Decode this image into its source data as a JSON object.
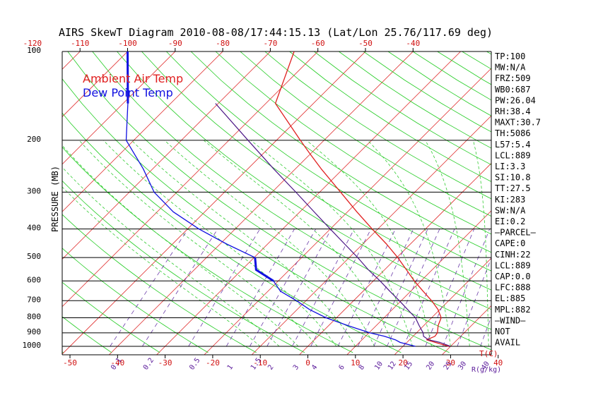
{
  "chart_data": {
    "type": "line",
    "title": "AIRS SkewT Diagram 2010-08-08/17:44:15.13 (Lat/Lon 25.76/117.69 deg)",
    "ylabel": "PRESSURE (MB)",
    "xlabel_right": "T(C)",
    "mixing_ratio_unit": "R(g/kg)",
    "top_temp_ticks": [
      "-120",
      "-110",
      "-100",
      "-90",
      "-80",
      "-70",
      "-60",
      "-50",
      "-40"
    ],
    "top_temp_values": [
      -120,
      -110,
      -100,
      -90,
      -80,
      -70,
      -60,
      -50,
      -40
    ],
    "bottom_temp_ticks": [
      "-50",
      "-40",
      "-30",
      "-20",
      "-10",
      "0",
      "10",
      "20",
      "30",
      "40"
    ],
    "bottom_temp_values": [
      -50,
      -40,
      -30,
      -20,
      -10,
      0,
      10,
      20,
      30,
      40
    ],
    "pressure_ticks": [
      "100",
      "200",
      "300",
      "400",
      "500",
      "600",
      "700",
      "800",
      "900",
      "1000"
    ],
    "pressure_levels": [
      100,
      200,
      300,
      400,
      500,
      600,
      700,
      800,
      900,
      1000
    ],
    "mixing_ratio_labels": [
      "0.1",
      "0.2",
      "0.5",
      "1",
      "1.5",
      "2",
      "3",
      "4",
      "6",
      "8",
      "10",
      "12",
      "15",
      "20",
      "25",
      "30",
      "40"
    ],
    "mixing_ratio_values": [
      0.1,
      0.2,
      0.5,
      1,
      1.5,
      2,
      3,
      4,
      6,
      8,
      10,
      12,
      15,
      20,
      25,
      30,
      40
    ],
    "legend": [
      {
        "name": "Ambient Air Temp",
        "color": "#e02020"
      },
      {
        "name": "Dew Point Temp",
        "color": "#1010e0"
      }
    ],
    "series": [
      {
        "name": "Ambient Air Temp",
        "color": "#e02020",
        "pressure": [
          1000,
          970,
          950,
          925,
          900,
          850,
          800,
          750,
          700,
          650,
          600,
          550,
          500,
          450,
          400,
          350,
          300,
          250,
          220,
          200,
          150,
          100
        ],
        "temp": [
          29.6,
          26.0,
          23.6,
          24.6,
          24.4,
          23.0,
          22.0,
          19.6,
          16.4,
          12.6,
          8.6,
          4.6,
          0.2,
          -5.0,
          -11.2,
          -18.0,
          -25.6,
          -34.6,
          -40.6,
          -45.0,
          -58.0,
          -65.0
        ]
      },
      {
        "name": "Dew Point Temp",
        "color": "#1010e0",
        "pressure": [
          1000,
          970,
          950,
          925,
          900,
          850,
          800,
          750,
          700,
          650,
          600,
          550,
          500,
          450,
          400,
          350,
          300,
          250,
          200,
          150,
          100
        ],
        "temp": [
          22.6,
          18.6,
          17.0,
          14.0,
          10.2,
          4.0,
          -2.2,
          -7.4,
          -12.0,
          -17.4,
          -21.0,
          -27.0,
          -29.8,
          -38.6,
          -47.6,
          -56.6,
          -64.8,
          -72.0,
          -81.6,
          -89.0,
          -100.0
        ],
        "thick_segments": [
          [
            600,
            500
          ],
          [
            150,
            100
          ]
        ]
      },
      {
        "name": "Parcel Path",
        "color": "#4a1585",
        "pressure": [
          1000,
          970,
          950,
          925,
          900,
          850,
          800,
          750,
          700,
          650,
          600,
          550,
          500,
          450,
          400,
          350,
          300,
          250,
          200,
          150
        ],
        "temp": [
          30.0,
          27.0,
          24.0,
          22.2,
          21.4,
          19.0,
          16.6,
          13.2,
          9.6,
          5.6,
          1.4,
          -3.4,
          -8.2,
          -13.8,
          -20.0,
          -27.0,
          -35.0,
          -44.6,
          -56.0,
          -70.6
        ]
      }
    ],
    "indices": [
      "TP:100",
      "MW:N/A",
      "FRZ:509",
      "WB0:687",
      "PW:26.04",
      "RH:38.4",
      "MAXT:30.7",
      "TH:5086",
      "L57:5.4",
      "LCL:889",
      "LI:3.3",
      "SI:10.8",
      "TT:27.5",
      "KI:283",
      "SW:N/A",
      "EI:0.2",
      "–PARCEL–",
      "CAPE:0",
      "CINH:22",
      "LCL:889",
      "CAP:0.0",
      "LFC:888",
      "EL:885",
      "MPL:882",
      "–WIND–",
      "NOT",
      "AVAIL"
    ]
  }
}
